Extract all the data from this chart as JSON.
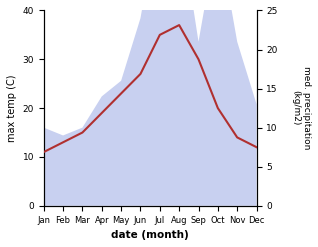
{
  "months": [
    "Jan",
    "Feb",
    "Mar",
    "Apr",
    "May",
    "Jun",
    "Jul",
    "Aug",
    "Sep",
    "Oct",
    "Nov",
    "Dec"
  ],
  "temp_max": [
    11,
    13,
    15,
    19,
    23,
    27,
    35,
    37,
    30,
    20,
    14,
    12
  ],
  "precipitation": [
    10,
    9,
    10,
    14,
    16,
    24,
    38,
    37,
    21,
    35,
    21,
    13
  ],
  "temp_color": "#b03030",
  "precip_fill_color": "#c8d0f0",
  "ylabel_left": "max temp (C)",
  "ylabel_right": "med. precipitation\n(kg/m2)",
  "xlabel": "date (month)",
  "ylim_left": [
    0,
    40
  ],
  "ylim_right": [
    0,
    25
  ],
  "yticks_left": [
    0,
    10,
    20,
    30,
    40
  ],
  "yticks_right": [
    0,
    5,
    10,
    15,
    20,
    25
  ],
  "fig_width": 3.18,
  "fig_height": 2.47,
  "dpi": 100
}
